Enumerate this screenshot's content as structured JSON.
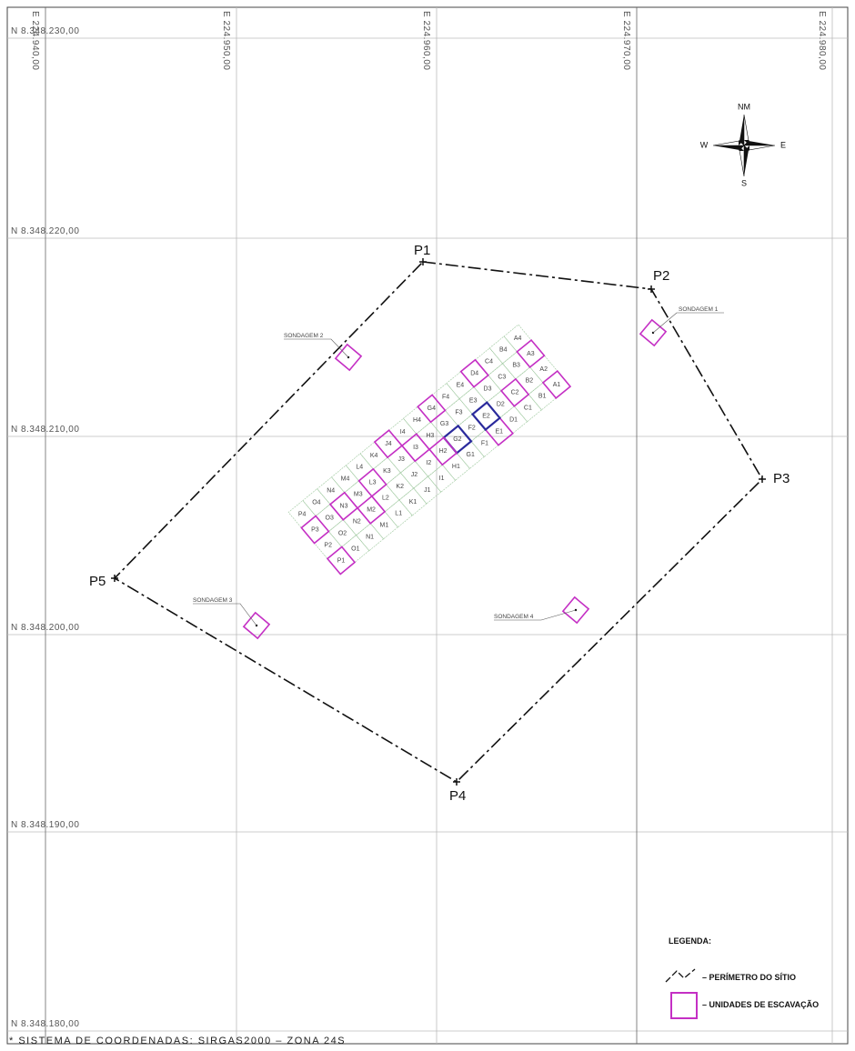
{
  "northings": [
    "N 8.348.230,00",
    "N 8.348.220,00",
    "N 8.348.210,00",
    "N 8.348.200,00",
    "N 8.348.190,00",
    "N 8.348.180,00"
  ],
  "eastings": [
    "E 224.940,00",
    "E 224.950,00",
    "E 224.960,00",
    "E 224.970,00",
    "E 224.980,00"
  ],
  "perimeter_points": [
    "P1",
    "P2",
    "P3",
    "P4",
    "P5"
  ],
  "soundings": [
    "SONDAGEM 1",
    "SONDAGEM 2",
    "SONDAGEM 3",
    "SONDAGEM 4"
  ],
  "compass": {
    "north": "NM",
    "west": "W",
    "east": "E",
    "south": "S"
  },
  "cells": [
    {
      "label": "A1",
      "style": "magenta"
    },
    {
      "label": "A2",
      "style": "grid"
    },
    {
      "label": "A3",
      "style": "magenta"
    },
    {
      "label": "A4",
      "style": "grid"
    },
    {
      "label": "B1",
      "style": "grid"
    },
    {
      "label": "B2",
      "style": "grid"
    },
    {
      "label": "B3",
      "style": "grid"
    },
    {
      "label": "B4",
      "style": "grid"
    },
    {
      "label": "C1",
      "style": "grid"
    },
    {
      "label": "C2",
      "style": "magenta"
    },
    {
      "label": "C3",
      "style": "grid"
    },
    {
      "label": "C4",
      "style": "grid"
    },
    {
      "label": "D1",
      "style": "grid"
    },
    {
      "label": "D2",
      "style": "grid"
    },
    {
      "label": "D3",
      "style": "grid"
    },
    {
      "label": "D4",
      "style": "magenta"
    },
    {
      "label": "E1",
      "style": "magenta"
    },
    {
      "label": "E2",
      "style": "blue"
    },
    {
      "label": "E3",
      "style": "grid"
    },
    {
      "label": "E4",
      "style": "grid"
    },
    {
      "label": "F1",
      "style": "grid"
    },
    {
      "label": "F2",
      "style": "grid"
    },
    {
      "label": "F3",
      "style": "grid"
    },
    {
      "label": "F4",
      "style": "grid"
    },
    {
      "label": "G1",
      "style": "grid"
    },
    {
      "label": "G2",
      "style": "blue"
    },
    {
      "label": "G3",
      "style": "grid"
    },
    {
      "label": "G4",
      "style": "magenta"
    },
    {
      "label": "H1",
      "style": "grid"
    },
    {
      "label": "H2",
      "style": "magenta"
    },
    {
      "label": "H3",
      "style": "grid"
    },
    {
      "label": "H4",
      "style": "grid"
    },
    {
      "label": "I1",
      "style": "grid"
    },
    {
      "label": "I2",
      "style": "grid"
    },
    {
      "label": "I3",
      "style": "magenta"
    },
    {
      "label": "I4",
      "style": "grid"
    },
    {
      "label": "J1",
      "style": "grid"
    },
    {
      "label": "J2",
      "style": "grid"
    },
    {
      "label": "J3",
      "style": "grid"
    },
    {
      "label": "J4",
      "style": "magenta"
    },
    {
      "label": "K1",
      "style": "grid"
    },
    {
      "label": "K2",
      "style": "grid"
    },
    {
      "label": "K3",
      "style": "grid"
    },
    {
      "label": "K4",
      "style": "grid"
    },
    {
      "label": "L1",
      "style": "grid"
    },
    {
      "label": "L2",
      "style": "grid"
    },
    {
      "label": "L3",
      "style": "magenta"
    },
    {
      "label": "L4",
      "style": "grid"
    },
    {
      "label": "M1",
      "style": "grid"
    },
    {
      "label": "M2",
      "style": "magenta"
    },
    {
      "label": "M3",
      "style": "grid"
    },
    {
      "label": "M4",
      "style": "grid"
    },
    {
      "label": "N1",
      "style": "grid"
    },
    {
      "label": "N2",
      "style": "grid"
    },
    {
      "label": "N3",
      "style": "magenta"
    },
    {
      "label": "N4",
      "style": "grid"
    },
    {
      "label": "O1",
      "style": "grid"
    },
    {
      "label": "O2",
      "style": "grid"
    },
    {
      "label": "O3",
      "style": "grid"
    },
    {
      "label": "O4",
      "style": "grid"
    },
    {
      "label": "P1",
      "style": "magenta"
    },
    {
      "label": "P2",
      "style": "grid"
    },
    {
      "label": "P3",
      "style": "magenta"
    },
    {
      "label": "P4",
      "style": "grid"
    }
  ],
  "legend": {
    "title": "LEGENDA:",
    "items": [
      "– PERÍMETRO DO SÍTIO",
      "– UNIDADES DE ESCAVAÇÃO"
    ]
  },
  "footnote": "* SISTEMA DE COORDENADAS: SIRGAS2000 – ZONA 24S"
}
